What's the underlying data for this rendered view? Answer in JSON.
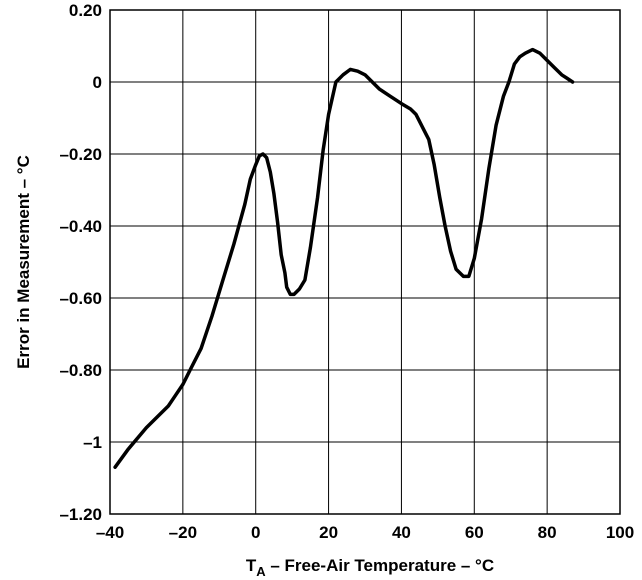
{
  "chart_data": {
    "type": "line",
    "title": "",
    "xlabel": {
      "main": "T",
      "sub": "A",
      "rest": " – Free-Air Temperature – °C"
    },
    "ylabel": "Error in Measurement – °C",
    "xlim": [
      -40,
      100
    ],
    "ylim": [
      -1.2,
      0.2
    ],
    "grid": true,
    "x_ticks": [
      {
        "value": -40,
        "label": "–40"
      },
      {
        "value": -20,
        "label": "–20"
      },
      {
        "value": 0,
        "label": "0"
      },
      {
        "value": 20,
        "label": "20"
      },
      {
        "value": 40,
        "label": "40"
      },
      {
        "value": 60,
        "label": "60"
      },
      {
        "value": 80,
        "label": "80"
      },
      {
        "value": 100,
        "label": "100"
      }
    ],
    "y_ticks": [
      {
        "value": 0.2,
        "label": "0.20"
      },
      {
        "value": 0,
        "label": "0"
      },
      {
        "value": -0.2,
        "label": "–0.20"
      },
      {
        "value": -0.4,
        "label": "–0.40"
      },
      {
        "value": -0.6,
        "label": "–0.60"
      },
      {
        "value": -0.8,
        "label": "–0.80"
      },
      {
        "value": -1.0,
        "label": "–1"
      },
      {
        "value": -1.2,
        "label": "–1.20"
      }
    ],
    "series": [
      {
        "color": "#000000",
        "x": [
          -38.6,
          -35,
          -30,
          -27,
          -24,
          -22,
          -20,
          -18,
          -15,
          -12,
          -9,
          -6,
          -3,
          -1.5,
          0,
          1,
          2,
          3,
          4,
          5,
          6,
          7,
          8,
          8.5,
          9.5,
          10.5,
          12,
          13.5,
          15,
          17,
          18.5,
          20,
          22,
          24,
          26,
          28,
          30,
          32,
          34,
          37,
          40,
          42.5,
          44,
          46,
          47.5,
          49,
          50.5,
          52,
          53.5,
          55,
          57,
          58.5,
          60,
          62,
          64,
          66,
          68,
          69.5,
          71,
          72.5,
          74,
          76,
          78,
          80,
          82,
          84,
          85.5,
          87
        ],
        "y": [
          -1.07,
          -1.02,
          -0.96,
          -0.93,
          -0.9,
          -0.87,
          -0.84,
          -0.8,
          -0.74,
          -0.65,
          -0.55,
          -0.45,
          -0.34,
          -0.27,
          -0.23,
          -0.205,
          -0.2,
          -0.21,
          -0.25,
          -0.31,
          -0.39,
          -0.48,
          -0.53,
          -0.57,
          -0.59,
          -0.59,
          -0.575,
          -0.55,
          -0.46,
          -0.32,
          -0.19,
          -0.09,
          0.0,
          0.02,
          0.035,
          0.03,
          0.02,
          0.0,
          -0.02,
          -0.04,
          -0.06,
          -0.075,
          -0.09,
          -0.13,
          -0.16,
          -0.23,
          -0.32,
          -0.4,
          -0.47,
          -0.52,
          -0.54,
          -0.54,
          -0.49,
          -0.38,
          -0.24,
          -0.12,
          -0.04,
          0.0,
          0.05,
          0.07,
          0.08,
          0.09,
          0.08,
          0.06,
          0.04,
          0.02,
          0.01,
          0.0
        ]
      }
    ]
  }
}
